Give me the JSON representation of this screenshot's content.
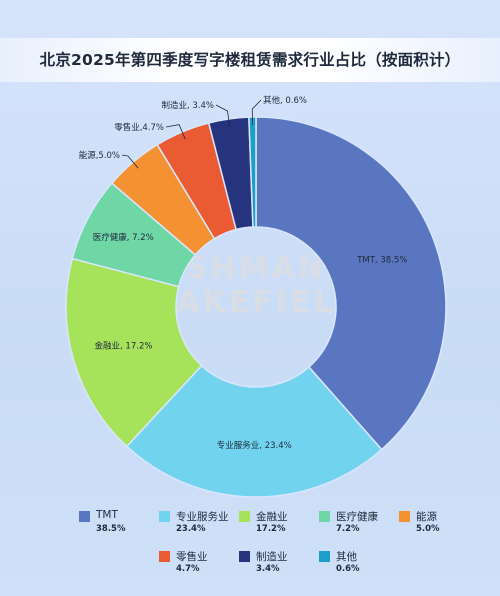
{
  "title": "北京2025年第四季度写字楼租赁需求行业占比（按面积计）",
  "watermark": [
    "SHMAN",
    "AKEFIEL"
  ],
  "chart_data": {
    "type": "pie",
    "title": "北京2025年第四季度写字楼租赁需求行业占比（按面积计）",
    "donut": true,
    "legend_position": "bottom",
    "slices": [
      {
        "name": "TMT",
        "value": 38.5,
        "label": "TMT, 38.5%",
        "legend_value": "38.5%",
        "color": "#5b76c0"
      },
      {
        "name": "专业服务业",
        "value": 23.4,
        "label": "专业服务业, 23.4%",
        "legend_value": "23.4%",
        "color": "#72d3ee"
      },
      {
        "name": "金融业",
        "value": 17.2,
        "label": "金融业, 17.2%",
        "legend_value": "17.2%",
        "color": "#a6e25a"
      },
      {
        "name": "医疗健康",
        "value": 7.2,
        "label": "医疗健康, 7.2%",
        "legend_value": "7.2%",
        "color": "#6fd6a6"
      },
      {
        "name": "能源",
        "value": 5.0,
        "label": "能源,5.0%",
        "legend_value": "5.0%",
        "color": "#f49233"
      },
      {
        "name": "零售业",
        "value": 4.7,
        "label": "零售业,4.7%",
        "legend_value": "4.7%",
        "color": "#ea5a33"
      },
      {
        "name": "制造业",
        "value": 3.4,
        "label": "制造业, 3.4%",
        "legend_value": "3.4%",
        "color": "#25347d"
      },
      {
        "name": "其他",
        "value": 0.6,
        "label": "其他, 0.6%",
        "legend_value": "0.6%",
        "color": "#1c9ecb"
      }
    ]
  }
}
